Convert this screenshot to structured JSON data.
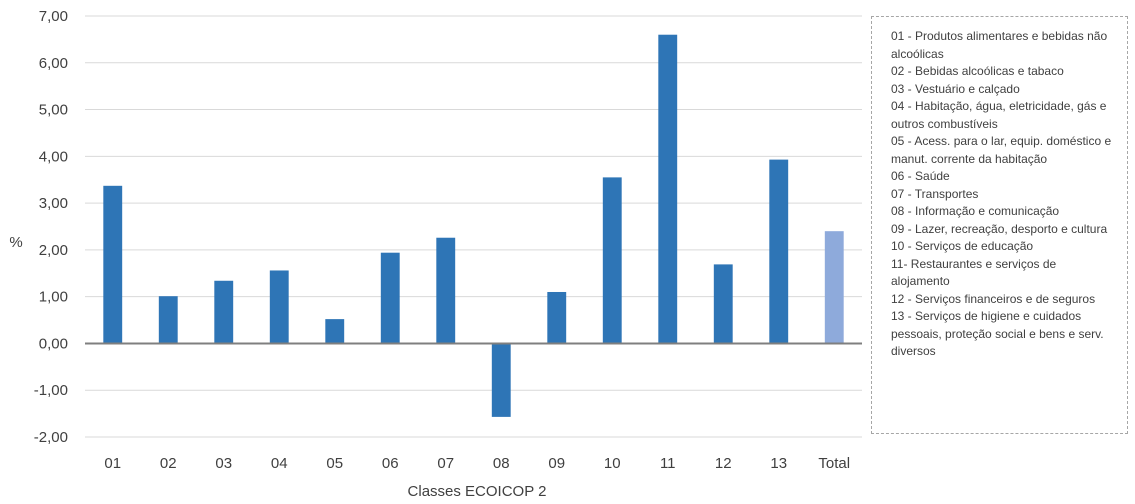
{
  "chart_data": {
    "type": "bar",
    "categories": [
      "01",
      "02",
      "03",
      "04",
      "05",
      "06",
      "07",
      "08",
      "09",
      "10",
      "11",
      "12",
      "13",
      "Total"
    ],
    "values": [
      3.37,
      1.01,
      1.34,
      1.56,
      0.52,
      1.94,
      2.26,
      -1.57,
      1.1,
      3.55,
      6.6,
      1.69,
      3.93,
      2.4
    ],
    "xlabel": "Classes ECOICOP 2",
    "ylabel": "%",
    "ylim": [
      -2,
      7
    ],
    "yticks": [
      "-2,00",
      "-1,00",
      "0,00",
      "1,00",
      "2,00",
      "3,00",
      "4,00",
      "5,00",
      "6,00",
      "7,00"
    ],
    "grid": true,
    "colors": {
      "bar": "#2e75b6",
      "total_bar": "#8eaadb",
      "grid": "#d9d9d9",
      "zero_line": "#7f7f7f"
    },
    "legend_position": "right",
    "legend": [
      "01 - Produtos alimentares e bebidas não alcoólicas",
      "02 - Bebidas alcoólicas e tabaco",
      "03 - Vestuário e calçado",
      "04 - Habitação, água, eletricidade, gás e outros combustíveis",
      "05 - Acess. para o lar, equip. doméstico e manut. corrente da habitação",
      "06 - Saúde",
      "07 - Transportes",
      "08 - Informação e comunicação",
      "09 - Lazer, recreação, desporto e cultura",
      "10 - Serviços de educação",
      "11- Restaurantes e serviços de alojamento",
      "12 - Serviços financeiros e de seguros",
      "13 - Serviços de higiene e cuidados pessoais, proteção social e bens e serv. diversos"
    ]
  }
}
